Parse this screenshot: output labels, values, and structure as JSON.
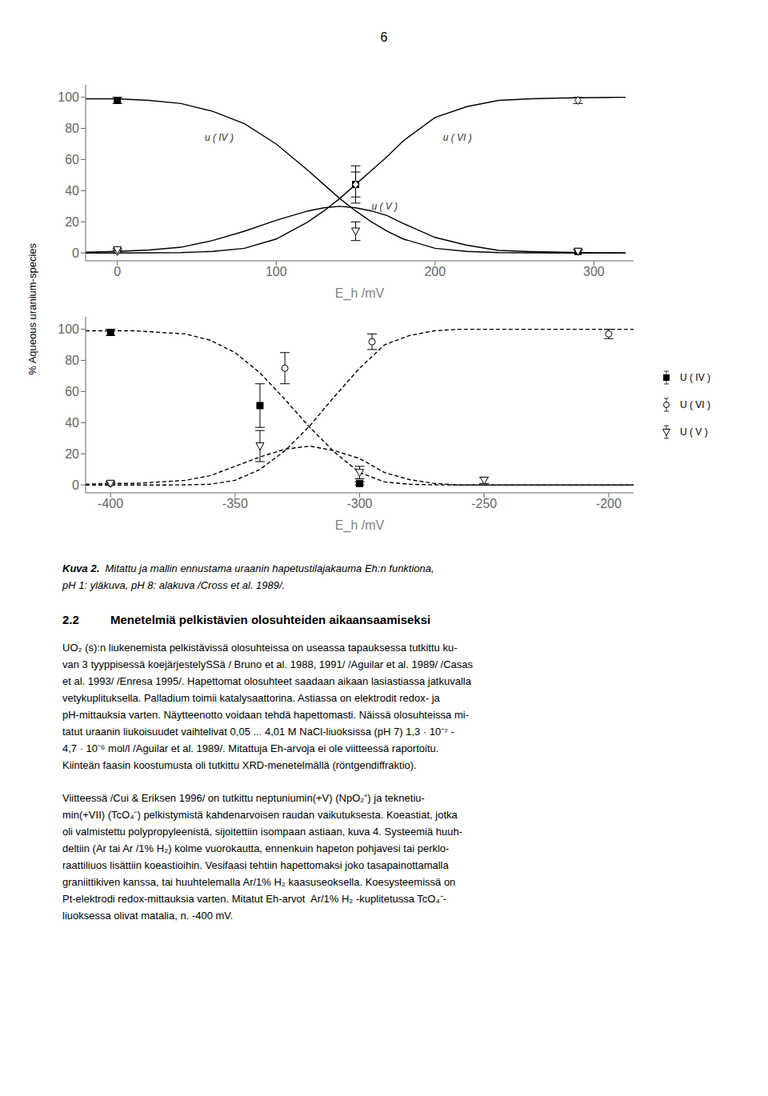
{
  "page_number": "6",
  "ylabel": "% Aqueous uranium-species",
  "chart_data": [
    {
      "type": "line",
      "xlabel": "E_h  /mV",
      "xlim": [
        -20,
        325
      ],
      "ylim": [
        -5,
        108
      ],
      "xticks": [
        0,
        100,
        200,
        300
      ],
      "yticks": [
        0,
        20,
        40,
        60,
        80,
        100
      ],
      "grid": false,
      "series": [
        {
          "type": "line",
          "color": "#000000",
          "line_style": "solid",
          "x": [
            -20,
            0,
            20,
            40,
            60,
            80,
            100,
            120,
            130,
            140,
            150,
            160,
            170,
            180,
            200,
            220,
            240,
            260,
            280,
            300,
            320
          ],
          "values": [
            99,
            99,
            98,
            96,
            91,
            83,
            70,
            53,
            44,
            35,
            27,
            20,
            14,
            9,
            3,
            1,
            0.3,
            0.1,
            0,
            0,
            0
          ]
        },
        {
          "type": "line",
          "color": "#000000",
          "line_style": "solid",
          "x": [
            -20,
            0,
            20,
            40,
            60,
            80,
            100,
            120,
            130,
            140,
            150,
            160,
            170,
            180,
            200,
            220,
            240,
            260,
            280,
            300,
            320
          ],
          "values": [
            0,
            0,
            0.1,
            0.3,
            1,
            3,
            9,
            20,
            27,
            35,
            44,
            53,
            62,
            72,
            87,
            94,
            98,
            99,
            99.5,
            99.8,
            100
          ]
        },
        {
          "type": "line",
          "color": "#000000",
          "line_style": "solid",
          "x": [
            -20,
            0,
            20,
            40,
            60,
            80,
            100,
            120,
            130,
            140,
            150,
            160,
            170,
            180,
            200,
            220,
            240,
            260,
            280,
            300,
            320
          ],
          "values": [
            0.5,
            1,
            1.9,
            3.7,
            8,
            14,
            21,
            27,
            29,
            30,
            29,
            27,
            24,
            19,
            10,
            5,
            1.7,
            0.9,
            0.5,
            0.2,
            0
          ]
        },
        {
          "type": "scatter",
          "color": "#000000",
          "marker": "square",
          "x": [
            0,
            150,
            290
          ],
          "values": [
            98,
            44,
            1
          ],
          "yerr": [
            2,
            8,
            1
          ]
        },
        {
          "type": "scatter",
          "color": "#000000",
          "marker": "open_diamond",
          "x": [
            0,
            150,
            290
          ],
          "values": [
            1,
            44,
            98
          ],
          "yerr": [
            1,
            12,
            2
          ]
        },
        {
          "type": "scatter",
          "color": "#000000",
          "marker": "open_triangle_down",
          "x": [
            0,
            150,
            290
          ],
          "values": [
            2,
            14,
            1
          ],
          "yerr": [
            1,
            6,
            1
          ]
        }
      ],
      "annotations": [
        {
          "text": "u ( IV )",
          "x": 55,
          "y": 72
        },
        {
          "text": "u ( VI )",
          "x": 205,
          "y": 72
        },
        {
          "text": "u ( V )",
          "x": 160,
          "y": 28
        }
      ]
    },
    {
      "type": "line",
      "xlabel": "E_h  /mV",
      "xlim": [
        -410,
        -190
      ],
      "ylim": [
        -5,
        108
      ],
      "xticks": [
        -400,
        -350,
        -300,
        -250,
        -200
      ],
      "yticks": [
        0,
        20,
        40,
        60,
        80,
        100
      ],
      "grid": false,
      "legend": "right",
      "series": [
        {
          "type": "line",
          "color": "#000000",
          "line_style": "dashed",
          "x": [
            -410,
            -400,
            -390,
            -380,
            -370,
            -360,
            -350,
            -340,
            -330,
            -320,
            -310,
            -300,
            -290,
            -280,
            -270,
            -260,
            -250,
            -240,
            -220,
            -200,
            -190
          ],
          "values": [
            99,
            99,
            99,
            98,
            97,
            93,
            85,
            72,
            55,
            37,
            21,
            8,
            2,
            0.5,
            0.1,
            0,
            0,
            0,
            0,
            0,
            0
          ]
        },
        {
          "type": "line",
          "color": "#000000",
          "line_style": "dashed",
          "x": [
            -410,
            -400,
            -390,
            -380,
            -370,
            -360,
            -350,
            -340,
            -330,
            -320,
            -310,
            -300,
            -290,
            -280,
            -270,
            -260,
            -250,
            -240,
            -220,
            -200,
            -190
          ],
          "values": [
            0,
            0,
            0,
            0,
            0.1,
            0.5,
            3,
            10,
            22,
            38,
            57,
            75,
            90,
            96,
            99,
            100,
            100,
            100,
            100,
            100,
            100
          ]
        },
        {
          "type": "line",
          "color": "#000000",
          "line_style": "dashed",
          "x": [
            -410,
            -400,
            -390,
            -380,
            -370,
            -360,
            -350,
            -340,
            -330,
            -320,
            -310,
            -300,
            -290,
            -280,
            -270,
            -260,
            -250,
            -240,
            -220,
            -200,
            -190
          ],
          "values": [
            0.5,
            1,
            1,
            2,
            3,
            6,
            12,
            18,
            23,
            25,
            22,
            17,
            8,
            3.5,
            1,
            0,
            0,
            0,
            0,
            0,
            0
          ]
        },
        {
          "type": "scatter",
          "name": "U ( IV )",
          "color": "#000000",
          "marker": "square",
          "x": [
            -400,
            -340,
            -300
          ],
          "values": [
            98,
            51,
            1
          ],
          "yerr": [
            2,
            14,
            1
          ]
        },
        {
          "type": "scatter",
          "name": "U ( VI )",
          "color": "#000000",
          "marker": "open_circle",
          "x": [
            -400,
            -330,
            -295,
            -200
          ],
          "values": [
            1,
            75,
            92,
            97
          ],
          "yerr": [
            1,
            10,
            5,
            3
          ]
        },
        {
          "type": "scatter",
          "name": "U ( V )",
          "color": "#000000",
          "marker": "open_triangle_down",
          "x": [
            -400,
            -340,
            -300,
            -250
          ],
          "values": [
            1,
            25,
            8,
            3
          ],
          "yerr": [
            1,
            10,
            4,
            2
          ]
        }
      ]
    }
  ],
  "caption_bold": "Kuva 2.",
  "caption_lines": [
    "Mitattu ja mallin ennustama uraanin hapetustilajakauma Eh:n funktiona,",
    "pH 1: yläkuva, pH 8: alakuva /Cross et al. 1989/."
  ],
  "section_num": "2.2",
  "section_title": "Menetelmiä pelkistävien olosuhteiden aikaansaamiseksi",
  "body1_lines": [
    "UO₂ (s):n liukenemista pelkistävissä olosuhteissa on useassa tapauksessa tutkittu ku-",
    "van 3 tyyppisessä koejärjestelySSä / Bruno et al. 1988, 1991/ /Aguilar et al. 1989/ /Casas",
    "et al. 1993/ /Enresa 1995/. Hapettomat olosuhteet saadaan aikaan lasiastiassa jatkuvalla",
    "vetykuplituksella. Palladium toimii katalysaattorina. Astiassa on elektrodit redox- ja",
    "pH-mittauksia varten. Näytteenotto voidaan tehdä hapettomasti. Näissä olosuhteissa mi-",
    "tatut uraanin liukoisuudet vaihtelivat 0,05 ... 4,01 M NaCl-liuoksissa (pH 7) 1,3 · 10⁻⁷ -",
    "4,7 · 10⁻⁶ mol/l /Aguilar et al. 1989/. Mitattuja Eh-arvoja ei ole viitteessä raportoitu.",
    "Kiinteän faasin koostumusta oli tutkittu XRD-menetelmällä (röntgendiffraktio)."
  ],
  "body2_lines": [
    "Viitteessä /Cui & Eriksen 1996/ on tutkittu neptuniumin(+V) (NpO₂⁺) ja teknetiu-",
    "min(+VII) (TcO₄⁻) pelkistymistä kahdenarvoisen raudan vaikutuksesta. Koeastiat, jotka",
    "oli valmistettu polypropyleenistä, sijoitettiin isompaan astiaan, kuva 4. Systeemiä huuh-",
    "deltiin (Ar tai Ar /1% H₂) kolme vuorokautta, ennenkuin hapeton pohjavesi tai perklo-",
    "raattiliuos lisättiin koeastioihin. Vesifaasi tehtiin hapettomaksi joko tasapainottamalla",
    "graniittikiven kanssa, tai huuhtelemalla Ar/1% H₂ kaasuseoksella. Koesysteemissä on",
    "Pt-elektrodi redox-mittauksia varten. Mitatut Eh-arvot  Ar/1% H₂ -kuplitetussa TcO₄⁻-",
    "liuoksessa olivat matalia, n. -400 mV."
  ]
}
